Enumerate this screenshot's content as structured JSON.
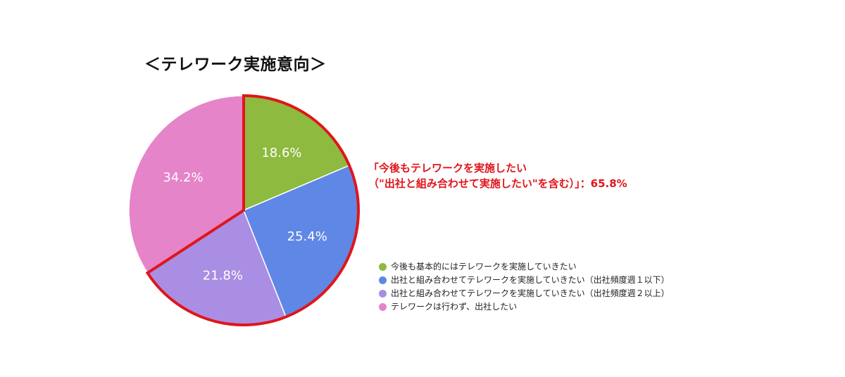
{
  "chart_data": {
    "type": "pie",
    "title": "＜テレワーク実施意向＞",
    "categories": [
      "今後も基本的にはテレワークを実施していきたい",
      "出社と組み合わせてテレワークを実施していきたい（出社頻度週１以下）",
      "出社と組み合わせてテレワークを実施していきたい（出社頻度週２以上）",
      "テレワークは行わず、出社したい"
    ],
    "values": [
      18.6,
      25.4,
      21.8,
      34.2
    ],
    "value_labels": [
      "18.6%",
      "25.4%",
      "21.8%",
      "34.2%"
    ],
    "colors": [
      "#8dba3f",
      "#5f87e6",
      "#a98ee4",
      "#e584c8"
    ],
    "highlight_color": "#e0151b",
    "highlight_slices": [
      0,
      1,
      2
    ],
    "legend_position": "bottom-right",
    "annotation": {
      "line1": "「今後もテレワークを実施したい",
      "line2": "（\"出社と組み合わせて実施したい\"を含む）」：65.8%"
    }
  }
}
